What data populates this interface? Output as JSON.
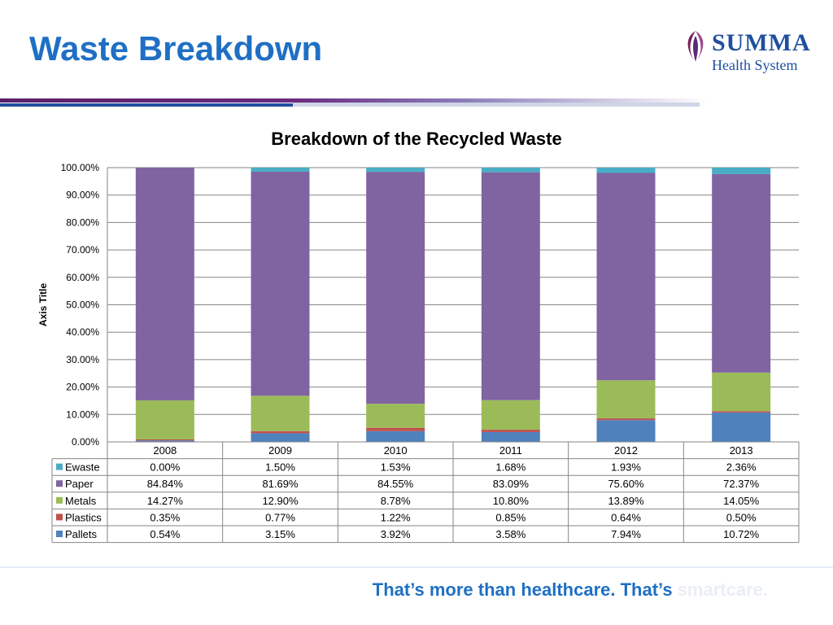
{
  "slide": {
    "title": "Waste Breakdown",
    "logo_name": "SUMMA",
    "logo_sub": "Health System",
    "tagline_main": "That’s more than healthcare. That’s ",
    "tagline_accent": "smartcare."
  },
  "colors": {
    "title_blue": "#1f6fc4",
    "Ewaste": "#4bacc6",
    "Paper": "#8064a2",
    "Metals": "#9bbb59",
    "Plastics": "#c0504d",
    "Pallets": "#4f81bd"
  },
  "chart_data": {
    "type": "bar",
    "stacked": true,
    "title": "Breakdown of the Recycled Waste",
    "ylabel": "Axis Title",
    "xlabel": "",
    "ylim": [
      0,
      100
    ],
    "ytick_labels": [
      "0.00%",
      "10.00%",
      "20.00%",
      "30.00%",
      "40.00%",
      "50.00%",
      "60.00%",
      "70.00%",
      "80.00%",
      "90.00%",
      "100.00%"
    ],
    "categories": [
      "2008",
      "2009",
      "2010",
      "2011",
      "2012",
      "2013"
    ],
    "series": [
      {
        "name": "Ewaste",
        "values": [
          0.0,
          1.5,
          1.53,
          1.68,
          1.93,
          2.36
        ],
        "labels": [
          "0.00%",
          "1.50%",
          "1.53%",
          "1.68%",
          "1.93%",
          "2.36%"
        ]
      },
      {
        "name": "Paper",
        "values": [
          84.84,
          81.69,
          84.55,
          83.09,
          75.6,
          72.37
        ],
        "labels": [
          "84.84%",
          "81.69%",
          "84.55%",
          "83.09%",
          "75.60%",
          "72.37%"
        ]
      },
      {
        "name": "Metals",
        "values": [
          14.27,
          12.9,
          8.78,
          10.8,
          13.89,
          14.05
        ],
        "labels": [
          "14.27%",
          "12.90%",
          "8.78%",
          "10.80%",
          "13.89%",
          "14.05%"
        ]
      },
      {
        "name": "Plastics",
        "values": [
          0.35,
          0.77,
          1.22,
          0.85,
          0.64,
          0.5
        ],
        "labels": [
          "0.35%",
          "0.77%",
          "1.22%",
          "0.85%",
          "0.64%",
          "0.50%"
        ]
      },
      {
        "name": "Pallets",
        "values": [
          0.54,
          3.15,
          3.92,
          3.58,
          7.94,
          10.72
        ],
        "labels": [
          "0.54%",
          "3.15%",
          "3.92%",
          "3.58%",
          "7.94%",
          "10.72%"
        ]
      }
    ],
    "legend": "data-table",
    "grid": true
  }
}
